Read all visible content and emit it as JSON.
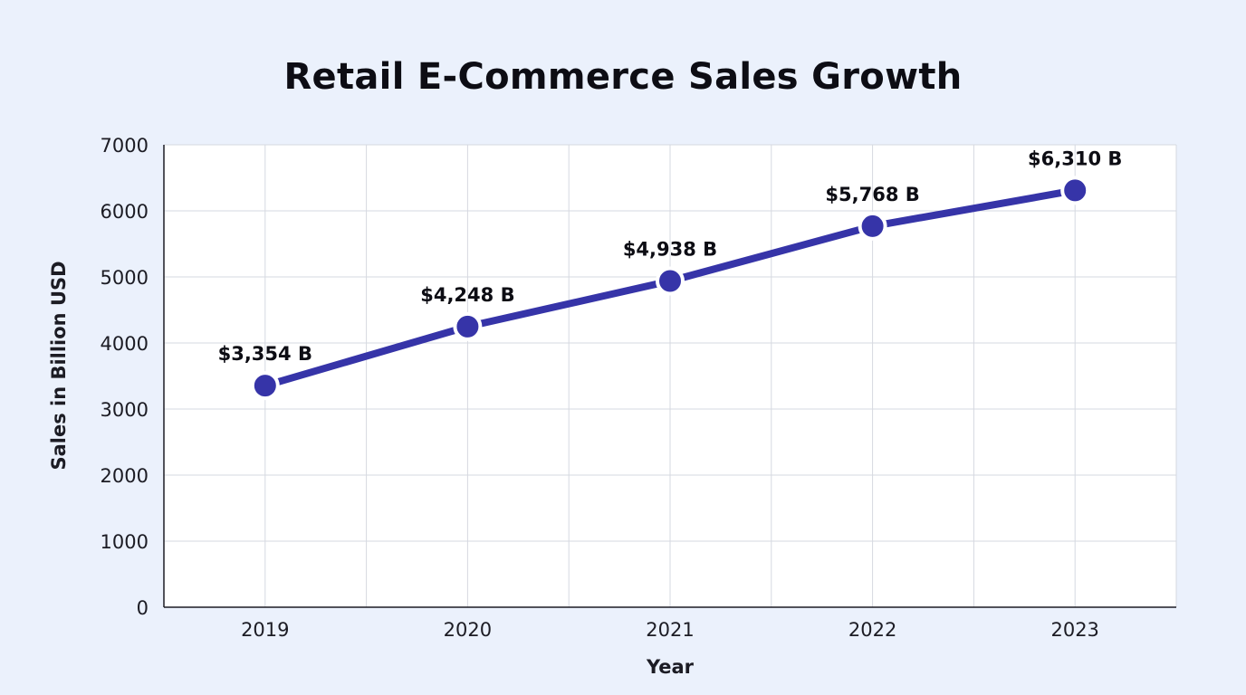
{
  "chart_data": {
    "type": "line",
    "title": "Retail E-Commerce Sales Growth",
    "xlabel": "Year",
    "ylabel": "Sales in Billion USD",
    "categories": [
      "2019",
      "2020",
      "2021",
      "2022",
      "2023"
    ],
    "values": [
      3354,
      4248,
      4938,
      5768,
      6310
    ],
    "data_labels": [
      "$3,354 B",
      "$4,248 B",
      "$4,938 B",
      "$5,768 B",
      "$6,310 B"
    ],
    "ylim": [
      0,
      7000
    ],
    "yticks": [
      0,
      1000,
      2000,
      3000,
      4000,
      5000,
      6000,
      7000
    ],
    "grid": true,
    "colors": {
      "line": "#3634a8",
      "marker_fill": "#3634a8",
      "marker_stroke": "#ffffff",
      "plot_background": "#ffffff",
      "page_background": "#ebf1fc",
      "grid": "#d6d9e0"
    }
  }
}
